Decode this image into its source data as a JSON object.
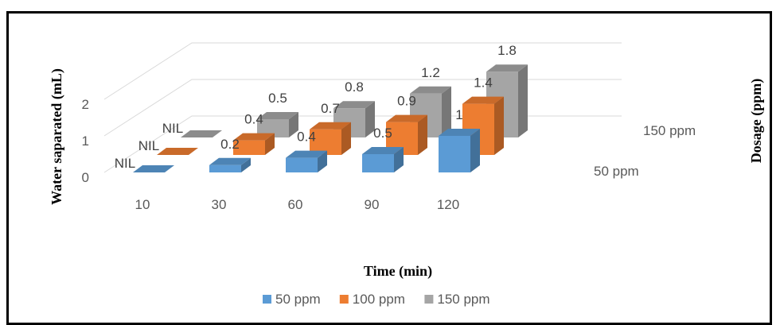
{
  "chart_data": {
    "type": "bar",
    "categories": [
      "10",
      "30",
      "60",
      "90",
      "120"
    ],
    "series": [
      {
        "name": "50 ppm",
        "color": "#5b9bd5",
        "values": [
          0,
          0.2,
          0.4,
          0.5,
          1
        ],
        "labels": [
          "NIL",
          "0.2",
          "0.4",
          "0.5",
          "1"
        ]
      },
      {
        "name": "100 ppm",
        "color": "#ed7d31",
        "values": [
          0,
          0.4,
          0.7,
          0.9,
          1.4
        ],
        "labels": [
          "NIL",
          "0.4",
          "0.7",
          "0.9",
          "1.4"
        ]
      },
      {
        "name": "150 ppm",
        "color": "#a5a5a5",
        "values": [
          0,
          0.5,
          0.8,
          1.2,
          1.8
        ],
        "labels": [
          "NIL",
          "0.5",
          "0.8",
          "1.2",
          "1.8"
        ]
      }
    ],
    "xlabel": "Time (min)",
    "ylabel": "Water saparated (mL)",
    "zlabel": "Dosage (ppm)",
    "yticks": [
      "0",
      "1",
      "2"
    ],
    "zticks": [
      "50 ppm",
      "150 ppm"
    ],
    "ylim": [
      0,
      2
    ],
    "legend": "bottom",
    "grid": true
  }
}
